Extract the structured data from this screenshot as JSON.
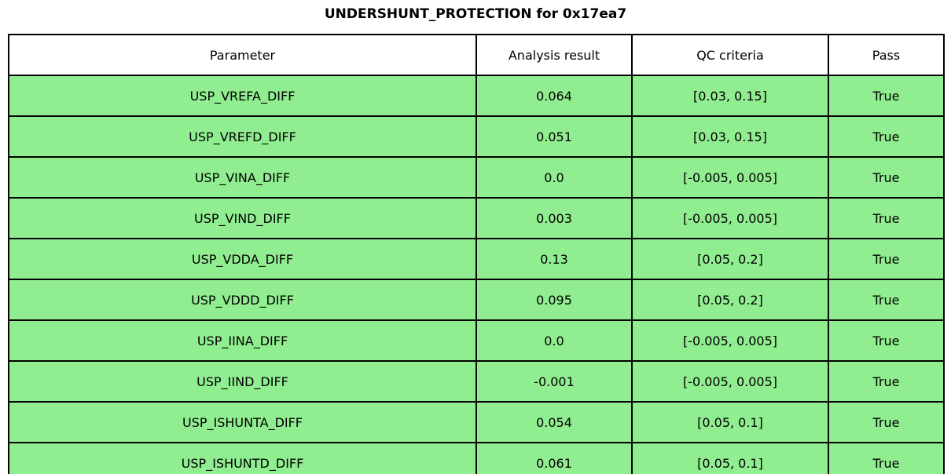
{
  "title": "UNDERSHUNT_PROTECTION for 0x17ea7",
  "colors": {
    "row_bg": "#90ee90",
    "header_bg": "#ffffff",
    "border": "#000000",
    "text": "#000000"
  },
  "chart_data": {
    "type": "table",
    "title": "UNDERSHUNT_PROTECTION for 0x17ea7",
    "columns": [
      "Parameter",
      "Analysis result",
      "QC criteria",
      "Pass"
    ],
    "rows": [
      {
        "parameter": "USP_VREFA_DIFF",
        "result": "0.064",
        "criteria": "[0.03, 0.15]",
        "pass": "True"
      },
      {
        "parameter": "USP_VREFD_DIFF",
        "result": "0.051",
        "criteria": "[0.03, 0.15]",
        "pass": "True"
      },
      {
        "parameter": "USP_VINA_DIFF",
        "result": "0.0",
        "criteria": "[-0.005, 0.005]",
        "pass": "True"
      },
      {
        "parameter": "USP_VIND_DIFF",
        "result": "0.003",
        "criteria": "[-0.005, 0.005]",
        "pass": "True"
      },
      {
        "parameter": "USP_VDDA_DIFF",
        "result": "0.13",
        "criteria": "[0.05, 0.2]",
        "pass": "True"
      },
      {
        "parameter": "USP_VDDD_DIFF",
        "result": "0.095",
        "criteria": "[0.05, 0.2]",
        "pass": "True"
      },
      {
        "parameter": "USP_IINA_DIFF",
        "result": "0.0",
        "criteria": "[-0.005, 0.005]",
        "pass": "True"
      },
      {
        "parameter": "USP_IIND_DIFF",
        "result": "-0.001",
        "criteria": "[-0.005, 0.005]",
        "pass": "True"
      },
      {
        "parameter": "USP_ISHUNTA_DIFF",
        "result": "0.054",
        "criteria": "[0.05, 0.1]",
        "pass": "True"
      },
      {
        "parameter": "USP_ISHUNTD_DIFF",
        "result": "0.061",
        "criteria": "[0.05, 0.1]",
        "pass": "True"
      }
    ]
  }
}
